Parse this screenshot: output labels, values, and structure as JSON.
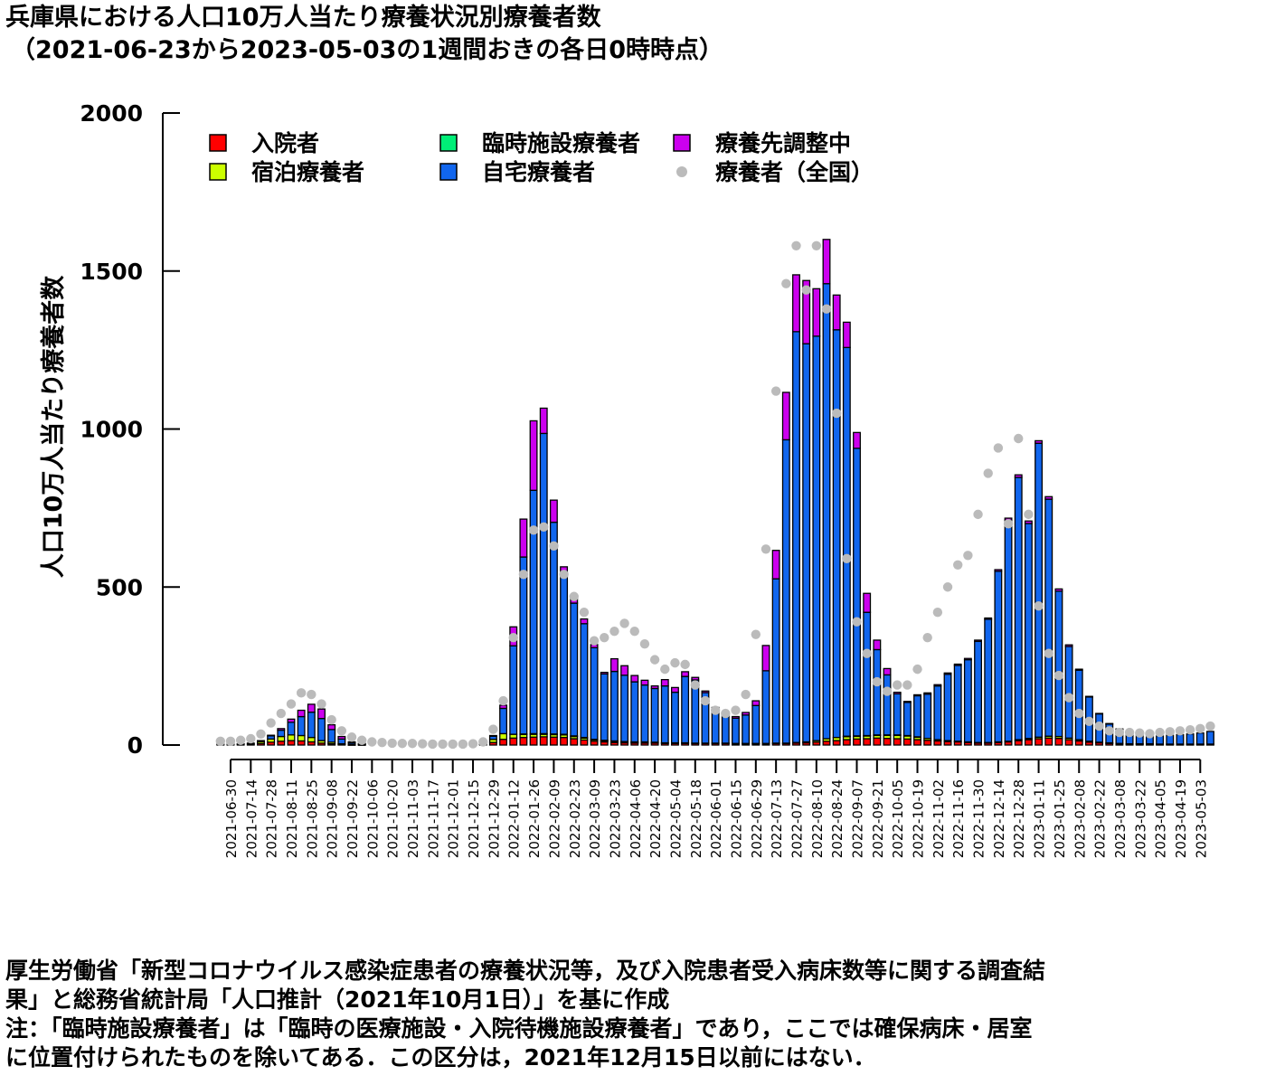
{
  "title": {
    "line1": "兵庫県における人口10万人当たり療養状況別療養者数",
    "line2": "（2021-06-23から2023-05-03の1週間おきの各日0時時点）"
  },
  "footer": {
    "lines": [
      "厚生労働省「新型コロナウイルス感染症患者の療養状況等，及び入院患者受入病床数等に関する調査結",
      "果」と総務省統計局「人口推計（2021年10月1日）」を基に作成",
      "注：「臨時施設療養者」は「臨時の医療施設・入院待機施設療養者」であり，ここでは確保病床・居室",
      "に位置付けられたものを除いてある．この区分は，2021年12月15日以前にはない．"
    ]
  },
  "colors": {
    "hospitalized": "#ff0000",
    "hotel": "#ccff00",
    "temporary": "#00ee77",
    "home": "#1166ee",
    "adjusting": "#cc00ee",
    "national": "#bbbbbb",
    "bar_outline": "#000000"
  },
  "chart_data": {
    "type": "bar",
    "stacked": true,
    "ylabel": "人口10万人当たり療養者数",
    "xlabel": "",
    "ylim": [
      0,
      2000
    ],
    "yticks": [
      0,
      500,
      1000,
      1500,
      2000
    ],
    "xtick_labels": [
      "2021-06-30",
      "2021-07-14",
      "2021-07-28",
      "2021-08-11",
      "2021-08-25",
      "2021-09-08",
      "2021-09-22",
      "2021-10-06",
      "2021-10-20",
      "2021-11-03",
      "2021-11-17",
      "2021-12-01",
      "2021-12-15",
      "2021-12-29",
      "2022-01-12",
      "2022-01-26",
      "2022-02-09",
      "2022-02-23",
      "2022-03-09",
      "2022-03-23",
      "2022-04-06",
      "2022-04-20",
      "2022-05-04",
      "2022-05-18",
      "2022-06-01",
      "2022-06-15",
      "2022-06-29",
      "2022-07-13",
      "2022-07-27",
      "2022-08-10",
      "2022-08-24",
      "2022-09-07",
      "2022-09-21",
      "2022-10-05",
      "2022-10-19",
      "2022-11-02",
      "2022-11-16",
      "2022-11-30",
      "2022-12-14",
      "2022-12-28",
      "2023-01-11",
      "2023-01-25",
      "2023-02-08",
      "2023-02-22",
      "2023-03-08",
      "2023-03-22",
      "2023-04-05",
      "2023-04-19",
      "2023-05-03"
    ],
    "legend": [
      {
        "key": "hospitalized",
        "label": "入院者",
        "marker": "square"
      },
      {
        "key": "temporary",
        "label": "臨時施設療養者",
        "marker": "square"
      },
      {
        "key": "adjusting",
        "label": "療養先調整中",
        "marker": "square"
      },
      {
        "key": "hotel",
        "label": "宿泊療養者",
        "marker": "square"
      },
      {
        "key": "home",
        "label": "自宅療養者",
        "marker": "square"
      },
      {
        "key": "national",
        "label": "療養者（全国）",
        "marker": "dot"
      }
    ],
    "legend_position": "top-left",
    "series": [
      {
        "key": "hospitalized",
        "values": [
          2,
          2,
          2,
          3,
          5,
          9,
          12,
          14,
          13,
          10,
          6,
          4,
          2,
          1,
          1,
          0,
          0,
          0,
          0,
          0,
          0,
          0,
          0,
          0,
          0,
          1,
          2,
          8,
          18,
          22,
          24,
          25,
          26,
          25,
          24,
          20,
          16,
          12,
          10,
          8,
          7,
          6,
          6,
          6,
          5,
          5,
          5,
          5,
          5,
          5,
          5,
          4,
          4,
          4,
          4,
          5,
          5,
          6,
          7,
          9,
          12,
          14,
          17,
          19,
          20,
          22,
          21,
          20,
          19,
          17,
          15,
          13,
          11,
          10,
          8,
          6,
          6,
          8,
          10,
          14,
          17,
          20,
          22,
          21,
          17,
          13,
          9,
          7,
          5,
          4,
          3,
          3,
          3,
          2,
          2,
          2,
          2,
          2,
          2
        ]
      },
      {
        "key": "hotel",
        "values": [
          1,
          1,
          2,
          3,
          6,
          10,
          15,
          18,
          17,
          14,
          8,
          5,
          2,
          1,
          1,
          0,
          0,
          0,
          0,
          0,
          0,
          0,
          0,
          0,
          0,
          1,
          2,
          10,
          18,
          12,
          10,
          9,
          8,
          8,
          8,
          7,
          6,
          5,
          4,
          4,
          3,
          3,
          3,
          2,
          2,
          2,
          2,
          1,
          1,
          1,
          1,
          1,
          1,
          1,
          1,
          1,
          1,
          2,
          3,
          5,
          8,
          10,
          10,
          9,
          9,
          9,
          10,
          11,
          10,
          8,
          6,
          4,
          3,
          2,
          2,
          2,
          2,
          2,
          2,
          3,
          4,
          5,
          6,
          6,
          5,
          4,
          3,
          2,
          2,
          1,
          1,
          1,
          1,
          1,
          1,
          1,
          1,
          1,
          1
        ]
      },
      {
        "key": "temporary",
        "values": [
          0,
          0,
          0,
          0,
          0,
          0,
          0,
          0,
          0,
          0,
          0,
          0,
          0,
          0,
          0,
          0,
          0,
          0,
          0,
          0,
          0,
          0,
          0,
          0,
          0,
          0,
          0,
          0,
          0,
          0,
          1,
          2,
          2,
          2,
          2,
          2,
          2,
          1,
          1,
          1,
          1,
          1,
          1,
          1,
          0,
          0,
          0,
          0,
          0,
          0,
          0,
          0,
          0,
          0,
          0,
          0,
          0,
          0,
          0,
          0,
          0,
          0,
          1,
          1,
          1,
          1,
          1,
          1,
          1,
          1,
          0,
          0,
          0,
          0,
          0,
          0,
          0,
          0,
          0,
          0,
          0,
          0,
          0,
          0,
          0,
          0,
          0,
          0,
          0,
          0,
          0,
          0,
          0,
          0,
          0,
          0,
          0,
          0,
          0
        ]
      },
      {
        "key": "home",
        "values": [
          0,
          0,
          0,
          0,
          3,
          10,
          20,
          40,
          60,
          80,
          70,
          40,
          15,
          5,
          2,
          0,
          0,
          0,
          0,
          0,
          0,
          0,
          0,
          0,
          0,
          0,
          1,
          10,
          80,
          280,
          560,
          770,
          950,
          670,
          500,
          420,
          360,
          290,
          210,
          220,
          210,
          190,
          180,
          170,
          180,
          160,
          210,
          200,
          160,
          110,
          90,
          80,
          90,
          120,
          230,
          520,
          960,
          1300,
          1260,
          1280,
          1440,
          1290,
          1230,
          910,
          390,
          270,
          190,
          130,
          105,
          130,
          140,
          170,
          210,
          240,
          260,
          320,
          390,
          540,
          700,
          830,
          680,
          930,
          750,
          460,
          290,
          220,
          140,
          90,
          60,
          45,
          35,
          28,
          26,
          26,
          28,
          30,
          32,
          35,
          40
        ]
      },
      {
        "key": "adjusting",
        "values": [
          0,
          0,
          0,
          0,
          0,
          2,
          5,
          10,
          20,
          25,
          30,
          15,
          8,
          3,
          1,
          0,
          0,
          0,
          0,
          0,
          0,
          0,
          0,
          0,
          0,
          0,
          1,
          2,
          10,
          60,
          120,
          220,
          80,
          70,
          30,
          20,
          15,
          10,
          5,
          40,
          30,
          20,
          15,
          8,
          20,
          15,
          15,
          8,
          5,
          3,
          3,
          5,
          8,
          15,
          80,
          90,
          150,
          180,
          200,
          150,
          140,
          110,
          80,
          50,
          60,
          30,
          20,
          5,
          3,
          3,
          4,
          4,
          4,
          4,
          4,
          4,
          4,
          5,
          6,
          8,
          8,
          8,
          8,
          7,
          5,
          3,
          2,
          1,
          1,
          1,
          1,
          0,
          0,
          0,
          0,
          0,
          0,
          0,
          0
        ]
      }
    ],
    "national": [
      12,
      12,
      15,
      20,
      35,
      70,
      100,
      130,
      165,
      160,
      130,
      80,
      45,
      25,
      15,
      10,
      8,
      6,
      5,
      5,
      4,
      3,
      3,
      3,
      3,
      4,
      10,
      50,
      140,
      340,
      540,
      680,
      690,
      630,
      540,
      470,
      420,
      330,
      340,
      360,
      385,
      360,
      320,
      270,
      240,
      260,
      255,
      190,
      140,
      110,
      100,
      110,
      160,
      350,
      620,
      1120,
      1460,
      1580,
      1440,
      1580,
      1380,
      1050,
      590,
      390,
      290,
      200,
      170,
      190,
      190,
      240,
      340,
      420,
      500,
      570,
      600,
      730,
      860,
      940,
      700,
      970,
      730,
      440,
      290,
      220,
      150,
      100,
      75,
      60,
      45,
      40,
      40,
      38,
      36,
      40,
      42,
      45,
      48,
      52,
      60
    ]
  }
}
